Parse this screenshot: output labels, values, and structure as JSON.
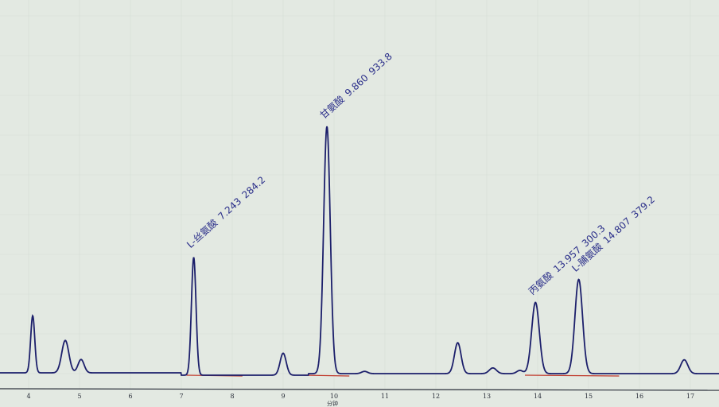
{
  "chart_data": {
    "type": "line",
    "title": "",
    "xlabel": "分钟",
    "ylabel": "",
    "xlim": [
      3.95,
      17.3
    ],
    "ylim": [
      0,
      1000
    ],
    "x_ticks": [
      4,
      5,
      6,
      7,
      8,
      9,
      10,
      11,
      12,
      13,
      14,
      15,
      16,
      17
    ],
    "grid": true,
    "colors": {
      "trace": "#1c1f6b",
      "baseline": "#c0392b",
      "label": "#2b2f8a",
      "background": "#e3e9e2"
    },
    "peaks": [
      {
        "rt": 4.08,
        "height": 231,
        "width": 0.04
      },
      {
        "rt": 4.72,
        "height": 131,
        "width": 0.07
      },
      {
        "rt": 5.03,
        "height": 54,
        "width": 0.06
      },
      {
        "rt": 7.243,
        "height": 477,
        "width": 0.045,
        "label": "L-丝氨酸",
        "rt_label": "7.243",
        "area_label": "284.2"
      },
      {
        "rt": 9.0,
        "height": 89,
        "width": 0.06
      },
      {
        "rt": 9.86,
        "height": 1000,
        "width": 0.065,
        "label": "甘氨酸",
        "rt_label": "9.860",
        "area_label": "933.8"
      },
      {
        "rt": 10.6,
        "height": 9,
        "width": 0.06
      },
      {
        "rt": 12.43,
        "height": 125,
        "width": 0.065
      },
      {
        "rt": 13.12,
        "height": 23,
        "width": 0.07
      },
      {
        "rt": 13.65,
        "height": 13,
        "width": 0.06
      },
      {
        "rt": 13.957,
        "height": 288,
        "width": 0.075,
        "label": "丙氨酸",
        "rt_label": "13.957",
        "area_label": "300.3"
      },
      {
        "rt": 14.807,
        "height": 381,
        "width": 0.075,
        "label": "L-脯氨酸",
        "rt_label": "14.807",
        "area_label": "379.2"
      },
      {
        "rt": 16.88,
        "height": 56,
        "width": 0.07
      }
    ],
    "baseline_segments": [
      [
        7.1,
        8.2
      ],
      [
        9.4,
        10.3
      ],
      [
        13.75,
        15.6
      ]
    ]
  }
}
